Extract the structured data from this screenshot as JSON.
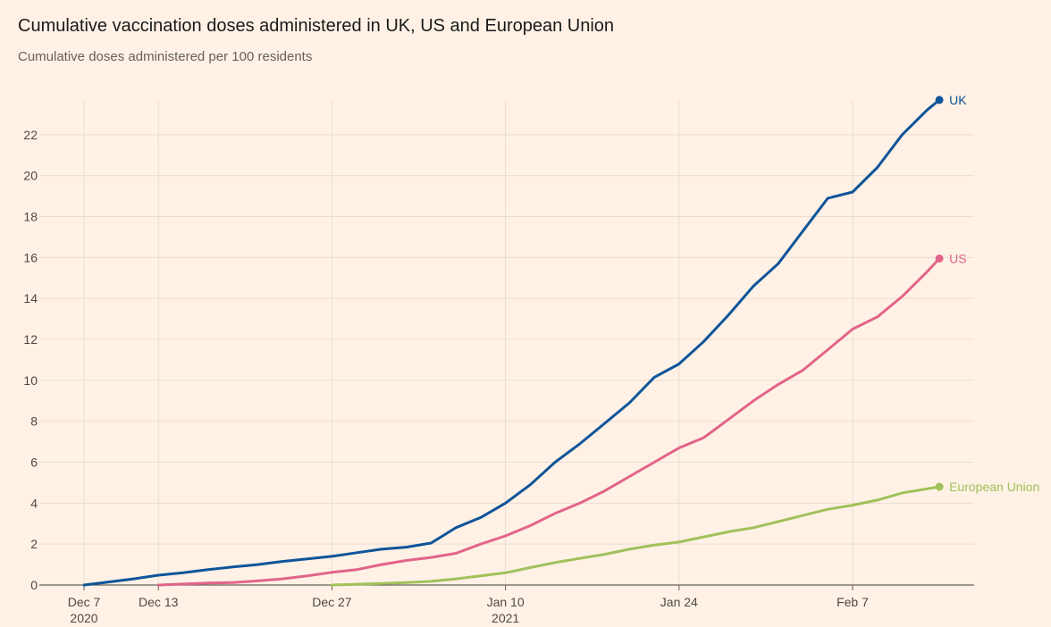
{
  "header": {
    "title": "Cumulative vaccination doses administered in UK, US and European Union",
    "subtitle": "Cumulative doses administered per 100 residents"
  },
  "colors": {
    "background": "#fff1e5",
    "grid": "#e9ddd2",
    "axis": "#66605c",
    "UK": "#0f5499",
    "US": "#e2648a",
    "European Union": "#a1c15a"
  },
  "chart_data": {
    "type": "line",
    "title": "Cumulative vaccination doses administered in UK, US and European Union",
    "subtitle": "Cumulative doses administered per 100 residents",
    "xlabel": "",
    "ylabel": "",
    "ylim": [
      0,
      24
    ],
    "xlim": [
      "2020-12-07",
      "2021-02-18"
    ],
    "grid": true,
    "legend": "inline labels at line ends",
    "yticks": [
      0,
      2,
      4,
      6,
      8,
      10,
      12,
      14,
      16,
      18,
      20,
      22
    ],
    "xticks": [
      {
        "date": "2020-12-07",
        "label": "Dec 7",
        "sublabel": "2020"
      },
      {
        "date": "2020-12-13",
        "label": "Dec 13",
        "sublabel": ""
      },
      {
        "date": "2020-12-27",
        "label": "Dec 27",
        "sublabel": ""
      },
      {
        "date": "2021-01-10",
        "label": "Jan 10",
        "sublabel": "2021"
      },
      {
        "date": "2021-01-24",
        "label": "Jan 24",
        "sublabel": ""
      },
      {
        "date": "2021-02-07",
        "label": "Feb 7",
        "sublabel": ""
      }
    ],
    "series": [
      {
        "name": "UK",
        "points": [
          [
            "2020-12-07",
            0.0
          ],
          [
            "2020-12-09",
            0.15
          ],
          [
            "2020-12-11",
            0.3
          ],
          [
            "2020-12-13",
            0.48
          ],
          [
            "2020-12-15",
            0.6
          ],
          [
            "2020-12-17",
            0.75
          ],
          [
            "2020-12-19",
            0.88
          ],
          [
            "2020-12-21",
            1.0
          ],
          [
            "2020-12-23",
            1.15
          ],
          [
            "2020-12-25",
            1.28
          ],
          [
            "2020-12-27",
            1.4
          ],
          [
            "2020-12-29",
            1.58
          ],
          [
            "2020-12-31",
            1.75
          ],
          [
            "2021-01-02",
            1.85
          ],
          [
            "2021-01-04",
            2.05
          ],
          [
            "2021-01-06",
            2.8
          ],
          [
            "2021-01-08",
            3.3
          ],
          [
            "2021-01-10",
            4.0
          ],
          [
            "2021-01-12",
            4.9
          ],
          [
            "2021-01-14",
            6.0
          ],
          [
            "2021-01-16",
            6.9
          ],
          [
            "2021-01-18",
            7.9
          ],
          [
            "2021-01-20",
            8.9
          ],
          [
            "2021-01-22",
            10.15
          ],
          [
            "2021-01-24",
            10.8
          ],
          [
            "2021-01-26",
            11.9
          ],
          [
            "2021-01-28",
            13.2
          ],
          [
            "2021-01-30",
            14.6
          ],
          [
            "2021-02-01",
            15.7
          ],
          [
            "2021-02-03",
            17.3
          ],
          [
            "2021-02-05",
            18.9
          ],
          [
            "2021-02-07",
            19.2
          ],
          [
            "2021-02-09",
            20.4
          ],
          [
            "2021-02-11",
            22.0
          ],
          [
            "2021-02-13",
            23.2
          ],
          [
            "2021-02-14",
            23.7
          ]
        ]
      },
      {
        "name": "US",
        "points": [
          [
            "2020-12-13",
            0.0
          ],
          [
            "2020-12-15",
            0.05
          ],
          [
            "2020-12-17",
            0.1
          ],
          [
            "2020-12-19",
            0.12
          ],
          [
            "2020-12-21",
            0.2
          ],
          [
            "2020-12-23",
            0.3
          ],
          [
            "2020-12-25",
            0.45
          ],
          [
            "2020-12-27",
            0.62
          ],
          [
            "2020-12-29",
            0.75
          ],
          [
            "2020-12-31",
            1.0
          ],
          [
            "2021-01-02",
            1.2
          ],
          [
            "2021-01-04",
            1.35
          ],
          [
            "2021-01-06",
            1.55
          ],
          [
            "2021-01-08",
            2.0
          ],
          [
            "2021-01-10",
            2.4
          ],
          [
            "2021-01-12",
            2.9
          ],
          [
            "2021-01-14",
            3.5
          ],
          [
            "2021-01-16",
            4.0
          ],
          [
            "2021-01-18",
            4.6
          ],
          [
            "2021-01-20",
            5.3
          ],
          [
            "2021-01-22",
            6.0
          ],
          [
            "2021-01-24",
            6.7
          ],
          [
            "2021-01-26",
            7.2
          ],
          [
            "2021-01-28",
            8.1
          ],
          [
            "2021-01-30",
            9.0
          ],
          [
            "2021-02-01",
            9.8
          ],
          [
            "2021-02-03",
            10.5
          ],
          [
            "2021-02-05",
            11.5
          ],
          [
            "2021-02-07",
            12.5
          ],
          [
            "2021-02-09",
            13.1
          ],
          [
            "2021-02-11",
            14.1
          ],
          [
            "2021-02-13",
            15.3
          ],
          [
            "2021-02-14",
            15.95
          ]
        ]
      },
      {
        "name": "European Union",
        "points": [
          [
            "2020-12-27",
            0.0
          ],
          [
            "2020-12-29",
            0.04
          ],
          [
            "2020-12-31",
            0.08
          ],
          [
            "2021-01-02",
            0.12
          ],
          [
            "2021-01-04",
            0.18
          ],
          [
            "2021-01-06",
            0.3
          ],
          [
            "2021-01-08",
            0.45
          ],
          [
            "2021-01-10",
            0.6
          ],
          [
            "2021-01-12",
            0.85
          ],
          [
            "2021-01-14",
            1.1
          ],
          [
            "2021-01-16",
            1.3
          ],
          [
            "2021-01-18",
            1.5
          ],
          [
            "2021-01-20",
            1.75
          ],
          [
            "2021-01-22",
            1.95
          ],
          [
            "2021-01-24",
            2.1
          ],
          [
            "2021-01-26",
            2.35
          ],
          [
            "2021-01-28",
            2.6
          ],
          [
            "2021-01-30",
            2.8
          ],
          [
            "2021-02-01",
            3.1
          ],
          [
            "2021-02-03",
            3.4
          ],
          [
            "2021-02-05",
            3.7
          ],
          [
            "2021-02-07",
            3.9
          ],
          [
            "2021-02-09",
            4.15
          ],
          [
            "2021-02-11",
            4.5
          ],
          [
            "2021-02-13",
            4.7
          ],
          [
            "2021-02-14",
            4.8
          ]
        ]
      }
    ]
  }
}
